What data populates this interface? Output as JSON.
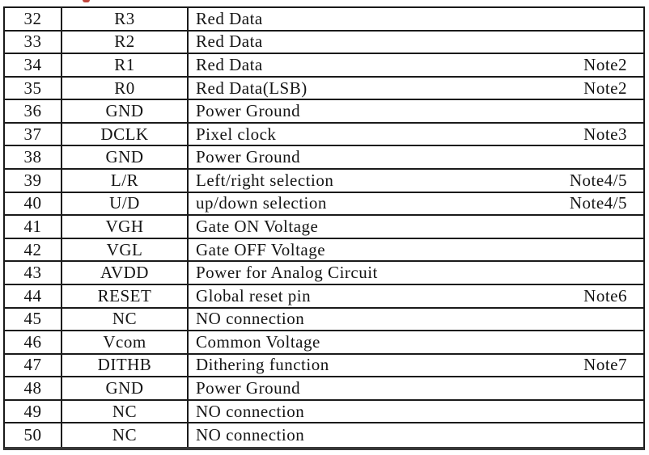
{
  "page": {
    "background": "#ffffff",
    "red_fragment_color": "#c0453c",
    "table_border_color": "#1a1a1a"
  },
  "table": {
    "rows": [
      {
        "pin": "32",
        "symbol": "R3",
        "description": "Red Data",
        "note": ""
      },
      {
        "pin": "33",
        "symbol": "R2",
        "description": "Red Data",
        "note": ""
      },
      {
        "pin": "34",
        "symbol": "R1",
        "description": "Red Data",
        "note": "Note2"
      },
      {
        "pin": "35",
        "symbol": "R0",
        "description": "Red Data(LSB)",
        "note": "Note2"
      },
      {
        "pin": "36",
        "symbol": "GND",
        "description": "Power Ground",
        "note": ""
      },
      {
        "pin": "37",
        "symbol": "DCLK",
        "description": "Pixel clock",
        "note": "Note3"
      },
      {
        "pin": "38",
        "symbol": "GND",
        "description": "Power Ground",
        "note": ""
      },
      {
        "pin": "39",
        "symbol": "L/R",
        "description": "Left/right selection",
        "note": "Note4/5"
      },
      {
        "pin": "40",
        "symbol": "U/D",
        "description": "up/down selection",
        "note": "Note4/5"
      },
      {
        "pin": "41",
        "symbol": "VGH",
        "description": "Gate ON Voltage",
        "note": ""
      },
      {
        "pin": "42",
        "symbol": "VGL",
        "description": "Gate OFF Voltage",
        "note": ""
      },
      {
        "pin": "43",
        "symbol": "AVDD",
        "description": "Power for Analog Circuit",
        "note": ""
      },
      {
        "pin": "44",
        "symbol": "RESET",
        "description": "Global reset pin",
        "note": "Note6"
      },
      {
        "pin": "45",
        "symbol": "NC",
        "description": "NO connection",
        "note": ""
      },
      {
        "pin": "46",
        "symbol": "Vcom",
        "description": "Common Voltage",
        "note": ""
      },
      {
        "pin": "47",
        "symbol": "DITHB",
        "description": "Dithering function",
        "note": "Note7"
      },
      {
        "pin": "48",
        "symbol": "GND",
        "description": "Power Ground",
        "note": ""
      },
      {
        "pin": "49",
        "symbol": "NC",
        "description": "NO connection",
        "note": ""
      },
      {
        "pin": "50",
        "symbol": "NC",
        "description": "NO connection",
        "note": ""
      }
    ]
  }
}
